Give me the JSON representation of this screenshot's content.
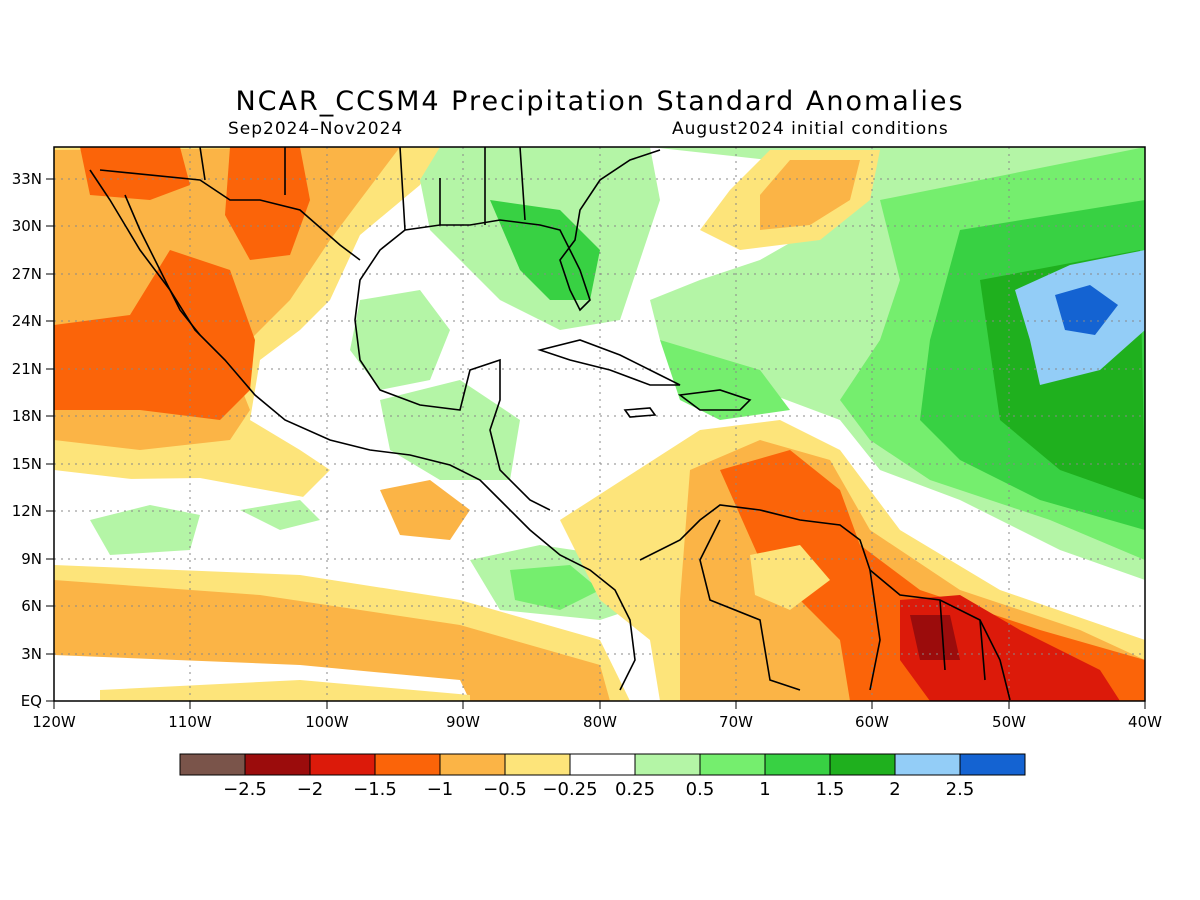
{
  "title": "NCAR_CCSM4 Precipitation Standard Anomalies",
  "subtitle_left": "Sep2024–Nov2024",
  "subtitle_right": "August2024 initial conditions",
  "map": {
    "lon_ticks": [
      "120W",
      "110W",
      "100W",
      "90W",
      "80W",
      "70W",
      "60W",
      "50W",
      "40W"
    ],
    "lat_ticks": [
      "33N",
      "30N",
      "27N",
      "24N",
      "21N",
      "18N",
      "15N",
      "12N",
      "9N",
      "6N",
      "3N",
      "EQ"
    ]
  },
  "colorbar": {
    "colors": [
      "#7a544a",
      "#9b0c0c",
      "#dc1a0a",
      "#fb6409",
      "#fbb446",
      "#fde47a",
      "#ffffff",
      "#b4f5a6",
      "#75ee6e",
      "#38d143",
      "#1fb01e",
      "#93cdf7",
      "#1463d2"
    ],
    "labels": [
      "−2.5",
      "−2",
      "−1.5",
      "−1",
      "−0.5",
      "−0.25",
      "0.25",
      "0.5",
      "1",
      "1.5",
      "2",
      "2.5"
    ]
  }
}
